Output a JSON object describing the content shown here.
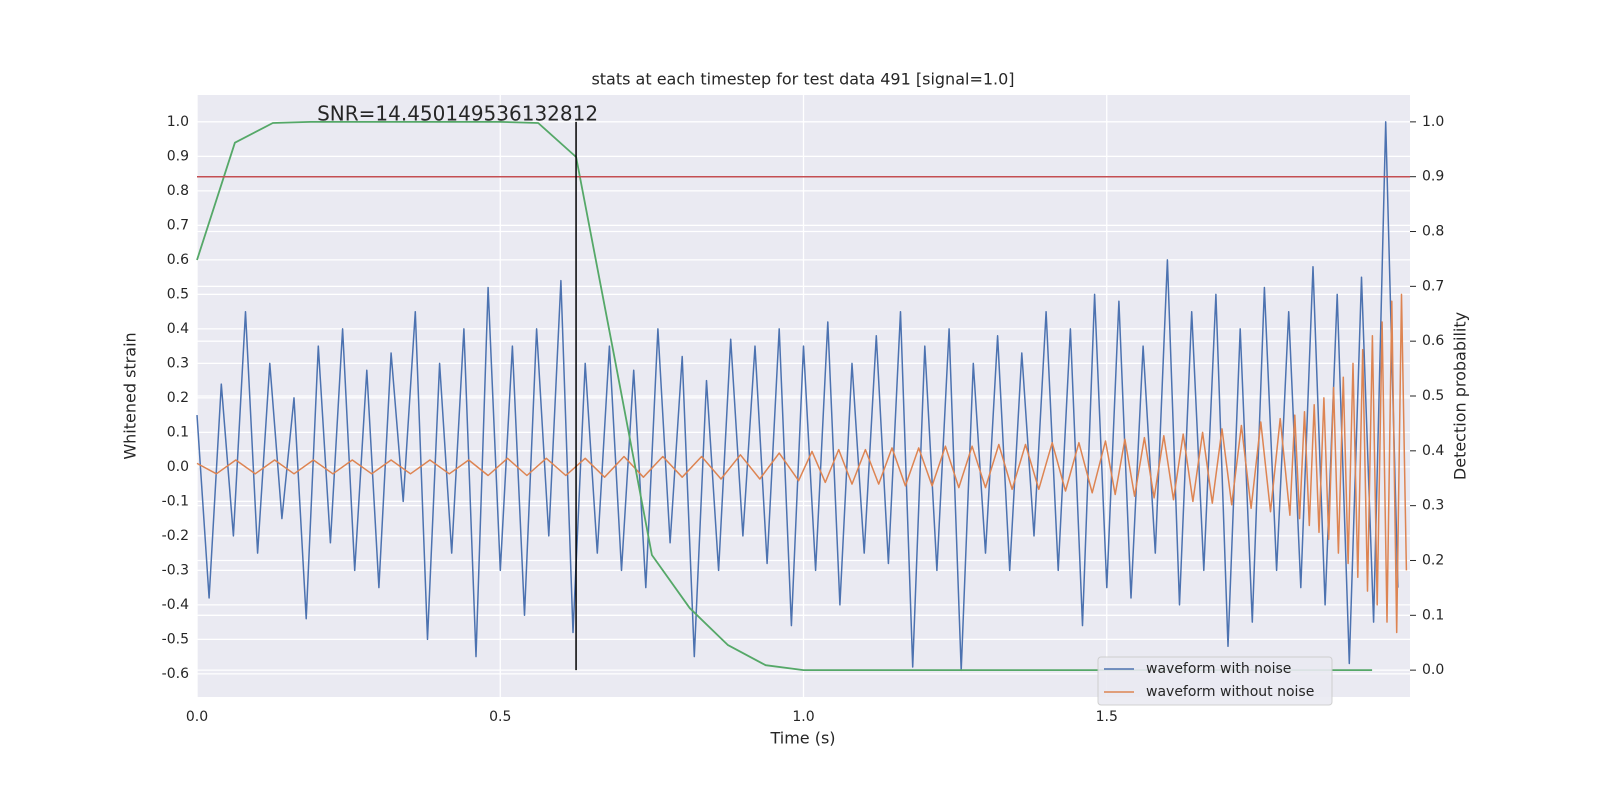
{
  "chart_data": {
    "type": "line",
    "title": "stats at each timestep for test data 491 [signal=1.0]",
    "xlabel": "Time (s)",
    "ylabel": "Whitened strain",
    "y2label": "Detection probability",
    "annotation": {
      "text": "SNR=14.450149536132812",
      "x": 0.198,
      "y": 1.02
    },
    "xlim": [
      0,
      2.0
    ],
    "xticks": [
      {
        "value": 0,
        "label": "0.0"
      },
      0.5,
      {
        "value": 1,
        "label": "1.0"
      },
      1.5
    ],
    "ylim": [
      -0.667,
      1.078
    ],
    "yticks": [
      -0.6,
      -0.5,
      -0.4,
      -0.3,
      -0.2,
      -0.1,
      {
        "value": 0,
        "label": "0.0"
      },
      0.1,
      0.2,
      0.3,
      0.4,
      0.5,
      0.6,
      0.7,
      0.8,
      0.9,
      {
        "value": 1,
        "label": "1.0"
      }
    ],
    "y2lim": [
      -0.049,
      1.049
    ],
    "y2ticks": [
      {
        "value": 0,
        "label": "0.0"
      },
      0.1,
      0.2,
      0.3,
      0.4,
      0.5,
      0.6,
      0.7,
      0.8,
      0.9,
      {
        "value": 1,
        "label": "1.0"
      }
    ],
    "grid": true,
    "legend": "lower right",
    "series": [
      {
        "name": "waveform with noise",
        "color": "#4c72b0",
        "x": [
          0,
          0.02,
          0.04,
          0.06,
          0.08,
          0.1,
          0.12,
          0.14,
          0.16,
          0.18,
          0.2,
          0.22,
          0.24,
          0.26,
          0.28,
          0.3,
          0.32,
          0.34,
          0.36,
          0.38,
          0.4,
          0.42,
          0.44,
          0.46,
          0.48,
          0.5,
          0.52,
          0.54,
          0.56,
          0.58,
          0.6,
          0.62,
          0.64,
          0.66,
          0.68,
          0.7,
          0.72,
          0.74,
          0.76,
          0.78,
          0.8,
          0.82,
          0.84,
          0.86,
          0.88,
          0.9,
          0.92,
          0.94,
          0.96,
          0.98,
          1.0,
          1.02,
          1.04,
          1.06,
          1.08,
          1.1,
          1.12,
          1.14,
          1.16,
          1.18,
          1.2,
          1.22,
          1.24,
          1.26,
          1.28,
          1.3,
          1.32,
          1.34,
          1.36,
          1.38,
          1.4,
          1.42,
          1.44,
          1.46,
          1.48,
          1.5,
          1.52,
          1.54,
          1.56,
          1.58,
          1.6,
          1.62,
          1.64,
          1.66,
          1.68,
          1.7,
          1.72,
          1.74,
          1.76,
          1.78,
          1.8,
          1.82,
          1.84,
          1.86,
          1.88,
          1.9,
          1.92,
          1.94,
          1.96,
          1.98
        ],
        "values": [
          0.15,
          -0.38,
          0.24,
          -0.2,
          0.45,
          -0.25,
          0.3,
          -0.15,
          0.2,
          -0.44,
          0.35,
          -0.22,
          0.4,
          -0.3,
          0.28,
          -0.35,
          0.33,
          -0.1,
          0.45,
          -0.5,
          0.3,
          -0.25,
          0.4,
          -0.55,
          0.52,
          -0.3,
          0.35,
          -0.43,
          0.4,
          -0.2,
          0.54,
          -0.48,
          0.3,
          -0.25,
          0.35,
          -0.3,
          0.28,
          -0.35,
          0.4,
          -0.22,
          0.32,
          -0.55,
          0.25,
          -0.3,
          0.37,
          -0.2,
          0.35,
          -0.28,
          0.4,
          -0.46,
          0.35,
          -0.3,
          0.42,
          -0.4,
          0.3,
          -0.25,
          0.38,
          -0.28,
          0.45,
          -0.58,
          0.35,
          -0.3,
          0.4,
          -0.59,
          0.3,
          -0.25,
          0.38,
          -0.3,
          0.33,
          -0.2,
          0.45,
          -0.3,
          0.4,
          -0.46,
          0.5,
          -0.35,
          0.48,
          -0.38,
          0.35,
          -0.25,
          0.6,
          -0.4,
          0.45,
          -0.3,
          0.5,
          -0.52,
          0.4,
          -0.45,
          0.52,
          -0.3,
          0.45,
          -0.35,
          0.58,
          -0.4,
          0.5,
          -0.57,
          0.55,
          -0.45,
          1.0,
          -0.35
        ]
      },
      {
        "name": "waveform without noise",
        "color": "#dd8452",
        "x": [
          0.0,
          0.032,
          0.064,
          0.096,
          0.128,
          0.16,
          0.192,
          0.224,
          0.256,
          0.288,
          0.32,
          0.352,
          0.384,
          0.416,
          0.448,
          0.48,
          0.512,
          0.544,
          0.576,
          0.608,
          0.64,
          0.672,
          0.704,
          0.736,
          0.768,
          0.8,
          0.832,
          0.864,
          0.896,
          0.928,
          0.96,
          0.992,
          1.014,
          1.036,
          1.058,
          1.08,
          1.102,
          1.124,
          1.146,
          1.168,
          1.19,
          1.212,
          1.234,
          1.256,
          1.278,
          1.3,
          1.322,
          1.344,
          1.366,
          1.388,
          1.41,
          1.432,
          1.454,
          1.476,
          1.498,
          1.514,
          1.53,
          1.546,
          1.562,
          1.578,
          1.594,
          1.61,
          1.626,
          1.642,
          1.658,
          1.674,
          1.69,
          1.706,
          1.722,
          1.738,
          1.754,
          1.77,
          1.786,
          1.802,
          1.81,
          1.818,
          1.826,
          1.834,
          1.842,
          1.85,
          1.858,
          1.866,
          1.874,
          1.882,
          1.89,
          1.898,
          1.906,
          1.914,
          1.922,
          1.93,
          1.938,
          1.946,
          1.954,
          1.962,
          1.97,
          1.978,
          1.986,
          1.994
        ],
        "values": [
          0.01,
          -0.02,
          0.02,
          -0.02,
          0.02,
          -0.02,
          0.02,
          -0.02,
          0.02,
          -0.02,
          0.02,
          -0.02,
          0.02,
          -0.02,
          0.02,
          -0.025,
          0.025,
          -0.025,
          0.025,
          -0.025,
          0.025,
          -0.03,
          0.03,
          -0.03,
          0.03,
          -0.03,
          0.03,
          -0.035,
          0.035,
          -0.035,
          0.04,
          -0.04,
          0.045,
          -0.045,
          0.05,
          -0.05,
          0.05,
          -0.05,
          0.055,
          -0.055,
          0.055,
          -0.055,
          0.06,
          -0.06,
          0.06,
          -0.06,
          0.065,
          -0.065,
          0.065,
          -0.065,
          0.07,
          -0.07,
          0.07,
          -0.075,
          0.075,
          -0.08,
          0.08,
          -0.085,
          0.085,
          -0.09,
          0.09,
          -0.095,
          0.095,
          -0.1,
          0.1,
          -0.105,
          0.11,
          -0.11,
          0.12,
          -0.12,
          0.13,
          -0.13,
          0.14,
          -0.14,
          0.15,
          -0.15,
          0.16,
          -0.17,
          0.18,
          -0.19,
          0.2,
          -0.21,
          0.23,
          -0.25,
          0.26,
          -0.28,
          0.3,
          -0.32,
          0.34,
          -0.36,
          0.38,
          -0.4,
          0.42,
          -0.45,
          0.48,
          -0.48,
          0.5,
          -0.3
        ]
      }
    ],
    "probability": {
      "color": "#55a868",
      "axis": "y2",
      "x": [
        0,
        0.0625,
        0.125,
        0.1875,
        0.25,
        0.3125,
        0.375,
        0.4375,
        0.5,
        0.5625,
        0.625,
        0.6875,
        0.75,
        0.8125,
        0.875,
        0.9375,
        1.0,
        1.0625,
        1.125,
        1.1875,
        1.25,
        1.3125,
        1.375,
        1.4375,
        1.5,
        1.5625,
        1.625,
        1.6875,
        1.75,
        1.8125,
        1.875,
        1.9375
      ],
      "values": [
        0.748,
        0.962,
        0.998,
        1.0,
        1.0,
        1.0,
        1.0,
        1.0,
        1.0,
        0.998,
        0.936,
        0.575,
        0.21,
        0.113,
        0.046,
        0.009,
        0.0,
        0.0,
        0.0,
        0.0,
        0.0,
        0.0,
        0.0,
        0.0,
        0.0,
        0.0,
        0.0,
        0.0,
        0.0,
        0.0,
        0.0,
        0.0
      ]
    },
    "threshold": {
      "y2": 0.9,
      "color": "#c44e52"
    },
    "marker_line": {
      "x": 0.625,
      "color": "#000000"
    }
  }
}
